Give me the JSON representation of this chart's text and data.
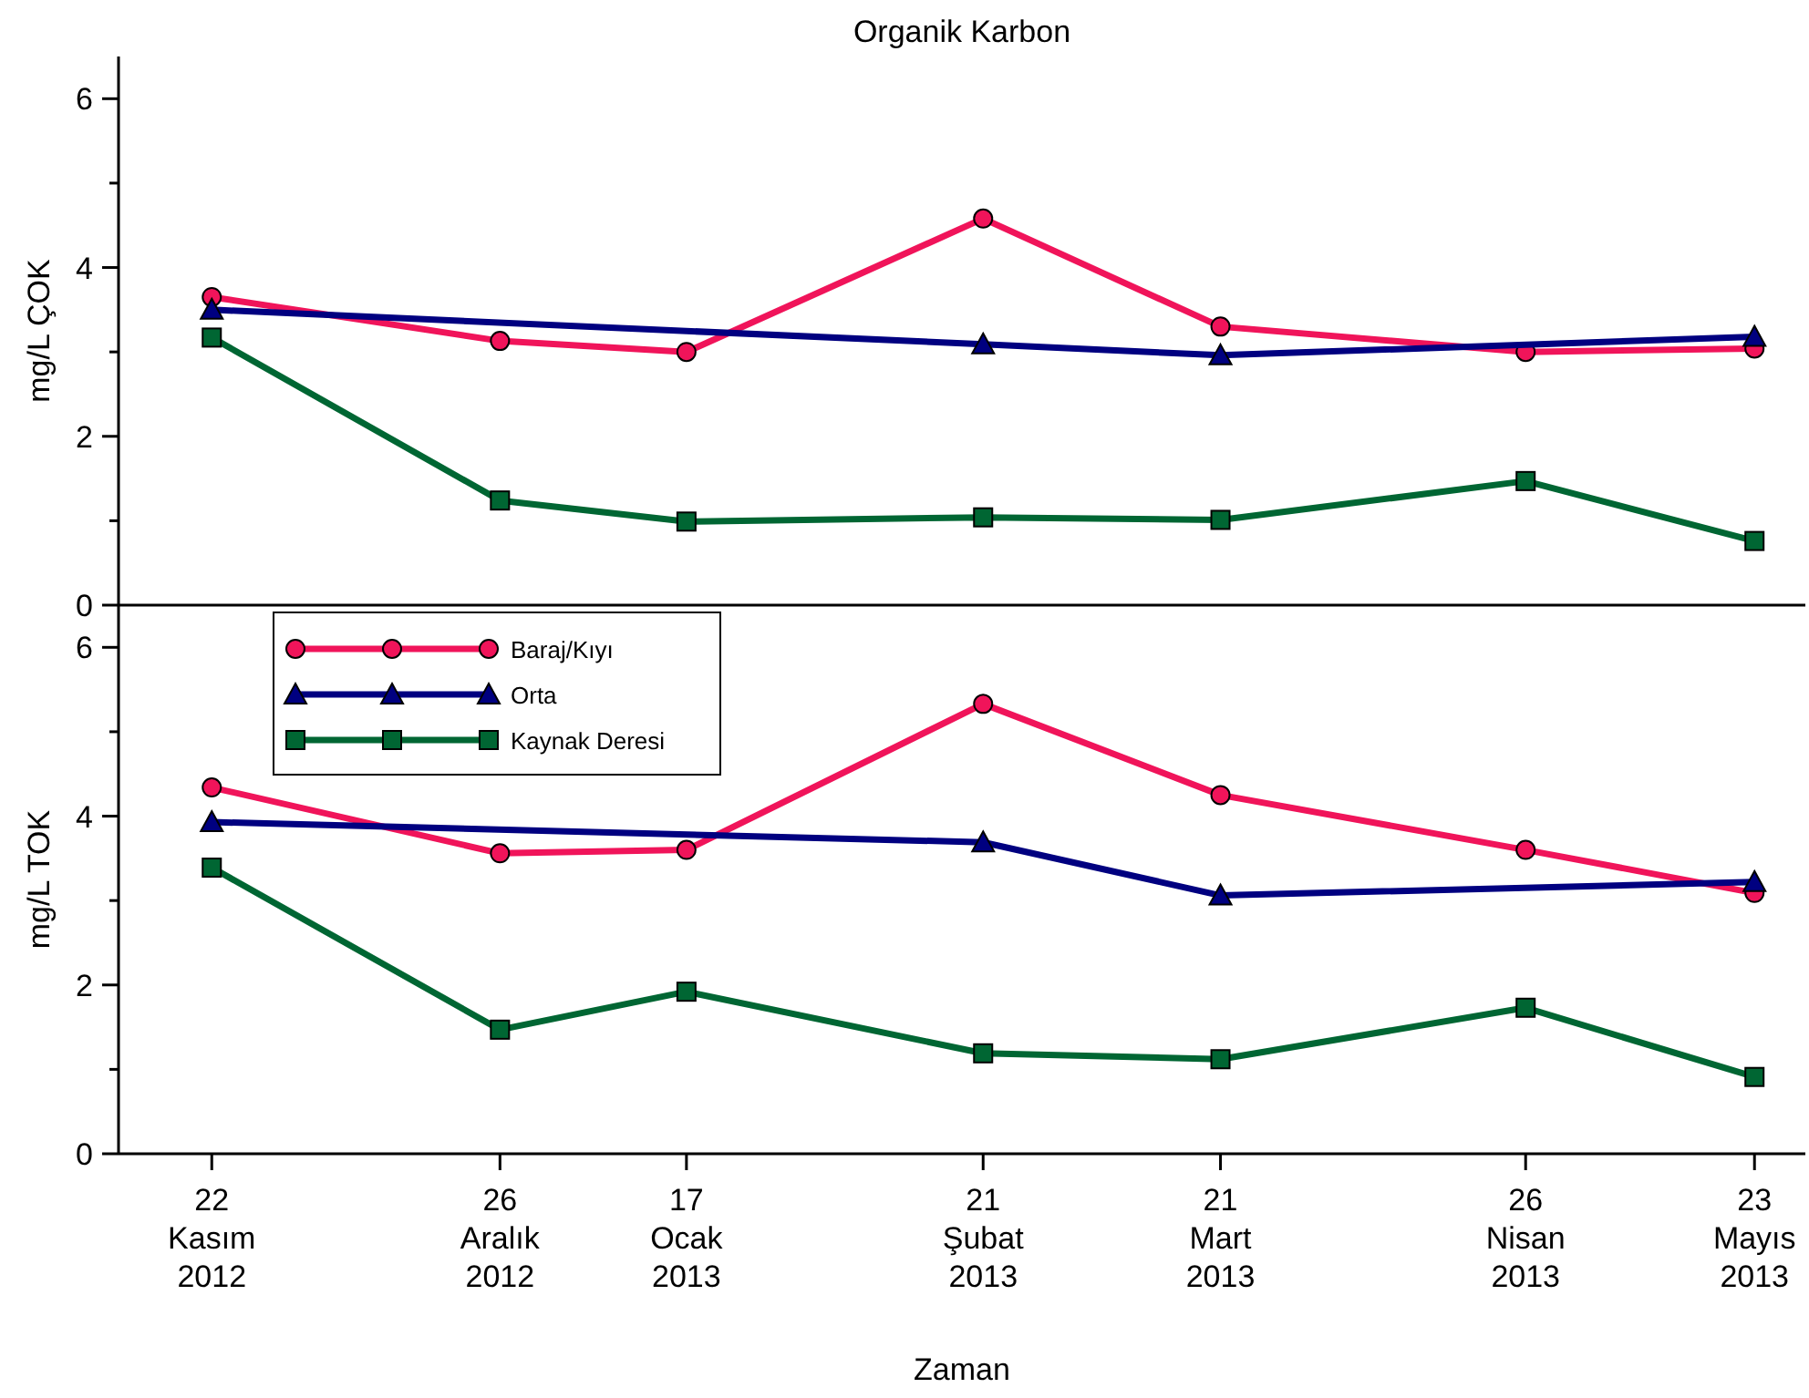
{
  "chart_data": [
    {
      "type": "line",
      "title": "Organik Karbon",
      "ylabel": "mg/L ÇOK",
      "tick_labels": "y",
      "line_style": "solid",
      "grid": false,
      "xlim": [
        "2012-11-11",
        "2013-05-29"
      ],
      "ylim": [
        0,
        6.5
      ],
      "yticks": [
        0,
        {
          "value": 1,
          "label": null
        },
        2,
        {
          "value": 3,
          "label": null
        },
        4,
        {
          "value": 5,
          "label": null
        },
        6
      ],
      "x": [
        "2012-11-22",
        "2012-12-26",
        "2013-01-17",
        "2013-02-21",
        "2013-03-21",
        "2013-04-26",
        "2013-05-23"
      ],
      "series": [
        {
          "color": "#f0145a",
          "marker": "circle",
          "values": [
            3.65,
            3.13,
            3.0,
            4.58,
            3.3,
            3.0,
            3.04
          ]
        },
        {
          "color": "#000080",
          "marker": "triangle",
          "x": [
            "2012-11-22",
            "2013-02-21",
            "2013-03-21",
            "2013-05-23"
          ],
          "values": [
            3.5,
            3.09,
            2.96,
            3.18
          ]
        },
        {
          "color": "#006633",
          "marker": "square",
          "values": [
            3.17,
            1.24,
            0.99,
            1.04,
            1.01,
            1.47,
            0.76
          ]
        }
      ]
    },
    {
      "type": "line",
      "ylabel": "mg/L TOK",
      "xlabel": "Zaman",
      "legend": "top left",
      "line_style": "solid",
      "grid": false,
      "xlim": [
        "2012-11-11",
        "2013-05-29"
      ],
      "ylim": [
        0,
        6.5
      ],
      "yticks": [
        0,
        {
          "value": 1,
          "label": null
        },
        2,
        {
          "value": 3,
          "label": null
        },
        4,
        {
          "value": 5,
          "label": null
        },
        6
      ],
      "xticks": [
        {
          "value": "2012-11-22",
          "label": "22\nKasım\n2012"
        },
        {
          "value": "2012-12-26",
          "label": "26\nAralık\n2012"
        },
        {
          "value": "2013-01-17",
          "label": "17\nOcak\n2013"
        },
        {
          "value": "2013-02-21",
          "label": "21\nŞubat\n2013"
        },
        {
          "value": "2013-03-21",
          "label": "21\nMart\n2013"
        },
        {
          "value": "2013-04-26",
          "label": "26\nNisan\n2013"
        },
        {
          "value": "2013-05-23",
          "label": "23\nMayıs\n2013"
        }
      ],
      "x": [
        "2012-11-22",
        "2012-12-26",
        "2013-01-17",
        "2013-02-21",
        "2013-03-21",
        "2013-04-26",
        "2013-05-23"
      ],
      "series": [
        {
          "name": "Baraj/Kıyı",
          "color": "#f0145a",
          "marker": "circle",
          "values": [
            4.34,
            3.56,
            3.6,
            5.33,
            4.25,
            3.6,
            3.09
          ]
        },
        {
          "name": "Orta",
          "color": "#000080",
          "marker": "triangle",
          "x": [
            "2012-11-22",
            "2013-02-21",
            "2013-03-21",
            "2013-05-23"
          ],
          "values": [
            3.93,
            3.69,
            3.06,
            3.22
          ]
        },
        {
          "name": "Kaynak Deresi",
          "color": "#006633",
          "marker": "square",
          "values": [
            3.39,
            1.47,
            1.92,
            1.19,
            1.12,
            1.73,
            0.91
          ]
        }
      ]
    }
  ]
}
